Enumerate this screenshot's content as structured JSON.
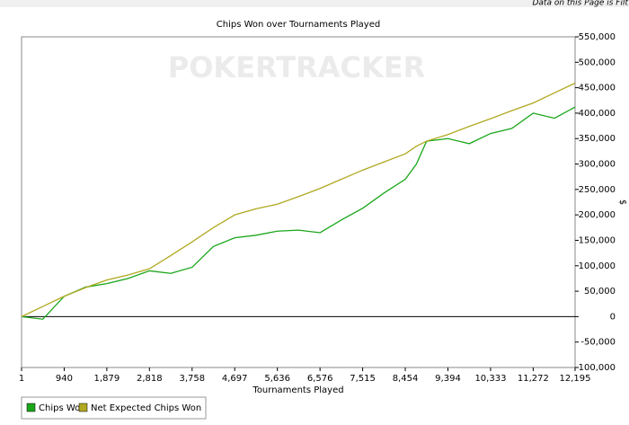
{
  "header_note": "Data on this Page is Filt",
  "chart_data": {
    "type": "line",
    "title": "Chips Won over Tournaments Played",
    "watermark": "POKERTRACKER",
    "xlabel": "Tournaments Played",
    "ylabel": "$",
    "x": [
      1,
      470,
      940,
      1410,
      1879,
      2349,
      2818,
      3288,
      3758,
      4227,
      4697,
      5166,
      5636,
      6106,
      6576,
      7045,
      7515,
      7985,
      8454,
      8700,
      8924,
      9394,
      9864,
      10333,
      10803,
      11272,
      11742,
      12195
    ],
    "series": [
      {
        "name": "Chips Won",
        "color": "#1aa61a",
        "values": [
          0,
          -5000,
          40000,
          58000,
          65000,
          75000,
          90000,
          85000,
          97000,
          138000,
          155000,
          160000,
          168000,
          170000,
          165000,
          190000,
          213000,
          243000,
          270000,
          300000,
          345000,
          350000,
          340000,
          360000,
          370000,
          400000,
          390000,
          412000
        ]
      },
      {
        "name": "Net Expected Chips Won",
        "color": "#b0a820",
        "values": [
          0,
          20000,
          40000,
          57000,
          72000,
          82000,
          94000,
          120000,
          147000,
          175000,
          200000,
          212000,
          221000,
          236000,
          252000,
          270000,
          288000,
          304000,
          320000,
          335000,
          345000,
          358000,
          374000,
          389000,
          405000,
          420000,
          440000,
          459000
        ]
      }
    ],
    "xlim": [
      1,
      12195
    ],
    "xticks": [
      1,
      940,
      {
        "value": 1879,
        "label": "1,879"
      },
      {
        "value": 2818,
        "label": "2,818"
      },
      {
        "value": 3758,
        "label": "3,758"
      },
      {
        "value": 4697,
        "label": "4,697"
      },
      {
        "value": 5636,
        "label": "5,636"
      },
      {
        "value": 6576,
        "label": "6,576"
      },
      {
        "value": 7515,
        "label": "7,515"
      },
      {
        "value": 8454,
        "label": "8,454"
      },
      {
        "value": 9394,
        "label": "9,394"
      },
      {
        "value": 10333,
        "label": "10,333"
      },
      {
        "value": 11272,
        "label": "11,272"
      },
      {
        "value": 12195,
        "label": "12,195"
      }
    ],
    "ylim": [
      -100000,
      550000
    ],
    "yticks": [
      {
        "value": -100000,
        "label": "-100,000"
      },
      {
        "value": -50000,
        "label": "-50,000"
      },
      0,
      {
        "value": 50000,
        "label": "50,000"
      },
      {
        "value": 100000,
        "label": "100,000"
      },
      {
        "value": 150000,
        "label": "150,000"
      },
      {
        "value": 200000,
        "label": "200,000"
      },
      {
        "value": 250000,
        "label": "250,000"
      },
      {
        "value": 300000,
        "label": "300,000"
      },
      {
        "value": 350000,
        "label": "350,000"
      },
      {
        "value": 400000,
        "label": "400,000"
      },
      {
        "value": 450000,
        "label": "450,000"
      },
      {
        "value": 500000,
        "label": "500,000"
      },
      {
        "value": 550000,
        "label": "550,000"
      }
    ]
  }
}
